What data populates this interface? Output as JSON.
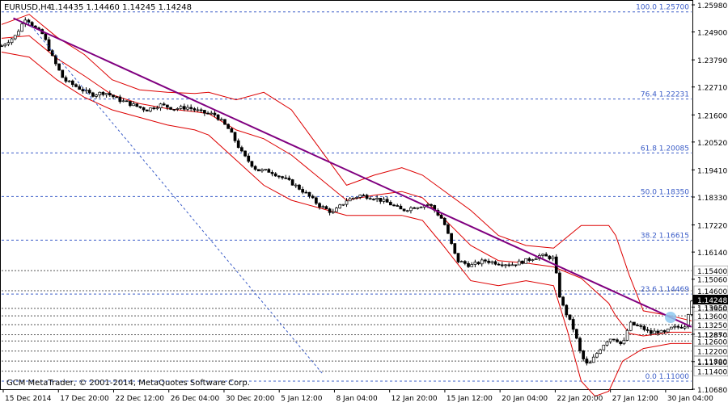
{
  "header": {
    "symbol_title": "EURUSD,H4",
    "ohlc": "1.14435 1.14460 1.14245 1.14248"
  },
  "footer": {
    "copyright": "GCM MetaTrader, © 2001-2014, MetaQuotes Software Corp."
  },
  "colors": {
    "background": "#ffffff",
    "candles": "#000000",
    "bollinger": "#dd0000",
    "trendline": "#800080",
    "fibo": "#3a5cc7",
    "price_label_bg": "#000000",
    "price_label_text": "#ffffff"
  },
  "chart_data": {
    "type": "candlestick",
    "title": "EURUSD,H4",
    "ylim": [
      1.1068,
      1.2598
    ],
    "y_ticks": [
      "1.25980",
      "1.24900",
      "1.23790",
      "1.22710",
      "1.21600",
      "1.20520",
      "1.19410",
      "1.18330",
      "1.17220",
      "1.16140",
      "1.15060",
      "1.13950",
      "1.12870",
      "1.11780",
      "1.10680"
    ],
    "x_ticks": [
      "15 Dec 2014",
      "17 Dec 20:00",
      "22 Dec 12:00",
      "26 Dec 04:00",
      "30 Dec 20:00",
      "5 Jan 12:00",
      "8 Jan 04:00",
      "12 Jan 20:00",
      "15 Jan 12:00",
      "20 Jan 04:00",
      "22 Jan 20:00",
      "27 Jan 12:00",
      "30 Jan 04:00"
    ],
    "fibonacci": [
      {
        "label": "100.0 1.25700",
        "price": 1.257
      },
      {
        "label": "76.4 1.22231",
        "price": 1.22231
      },
      {
        "label": "61.8 1.20085",
        "price": 1.20085
      },
      {
        "label": "50.0 1.18350",
        "price": 1.1835
      },
      {
        "label": "38.2 1.16615",
        "price": 1.16615
      },
      {
        "label": "23.6 1.14469",
        "price": 1.14469
      },
      {
        "label": "0.0 1.11000",
        "price": 1.11
      }
    ],
    "horizontal_levels": [
      {
        "label": "1.15400",
        "price": 1.154
      },
      {
        "label": "1.14600",
        "price": 1.146
      },
      {
        "label": "1.13900",
        "price": 1.139
      },
      {
        "label": "1.13600",
        "price": 1.136
      },
      {
        "label": "1.13250",
        "price": 1.1325
      },
      {
        "label": "1.12850",
        "price": 1.1285
      },
      {
        "label": "1.12600",
        "price": 1.126
      },
      {
        "label": "1.12200",
        "price": 1.122
      },
      {
        "label": "1.11800",
        "price": 1.118
      },
      {
        "label": "1.11400",
        "price": 1.114
      }
    ],
    "current_price": {
      "label": "1.14248",
      "price": 1.14248
    },
    "trendline": {
      "start": [
        0.017,
        1.2545
      ],
      "end": [
        1.0,
        1.1316
      ]
    },
    "trend_channel_dashed": {
      "start": [
        0.038,
        1.253
      ],
      "end": [
        0.465,
        1.113
      ]
    },
    "price_path": [
      [
        0.0,
        1.2435
      ],
      [
        0.02,
        1.2475
      ],
      [
        0.035,
        1.2548
      ],
      [
        0.05,
        1.25
      ],
      [
        0.06,
        1.248
      ],
      [
        0.075,
        1.238
      ],
      [
        0.09,
        1.23
      ],
      [
        0.11,
        1.227
      ],
      [
        0.13,
        1.224
      ],
      [
        0.15,
        1.225
      ],
      [
        0.17,
        1.222
      ],
      [
        0.19,
        1.22
      ],
      [
        0.21,
        1.218
      ],
      [
        0.23,
        1.22
      ],
      [
        0.25,
        1.2185
      ],
      [
        0.27,
        1.219
      ],
      [
        0.29,
        1.217
      ],
      [
        0.31,
        1.216
      ],
      [
        0.33,
        1.21
      ],
      [
        0.35,
        1.2
      ],
      [
        0.37,
        1.194
      ],
      [
        0.39,
        1.1935
      ],
      [
        0.4,
        1.192
      ],
      [
        0.42,
        1.189
      ],
      [
        0.44,
        1.185
      ],
      [
        0.46,
        1.18
      ],
      [
        0.48,
        1.177
      ],
      [
        0.5,
        1.182
      ],
      [
        0.52,
        1.184
      ],
      [
        0.54,
        1.183
      ],
      [
        0.56,
        1.181
      ],
      [
        0.58,
        1.178
      ],
      [
        0.6,
        1.1795
      ],
      [
        0.62,
        1.1805
      ],
      [
        0.64,
        1.174
      ],
      [
        0.66,
        1.158
      ],
      [
        0.68,
        1.156
      ],
      [
        0.7,
        1.158
      ],
      [
        0.72,
        1.157
      ],
      [
        0.74,
        1.1565
      ],
      [
        0.76,
        1.158
      ],
      [
        0.78,
        1.16
      ],
      [
        0.8,
        1.159
      ],
      [
        0.81,
        1.142
      ],
      [
        0.82,
        1.136
      ],
      [
        0.83,
        1.13
      ],
      [
        0.84,
        1.12
      ],
      [
        0.85,
        1.116
      ],
      [
        0.86,
        1.12
      ],
      [
        0.87,
        1.124
      ],
      [
        0.88,
        1.127
      ],
      [
        0.89,
        1.127
      ],
      [
        0.9,
        1.124
      ],
      [
        0.91,
        1.133
      ],
      [
        0.92,
        1.132
      ],
      [
        0.93,
        1.131
      ],
      [
        0.94,
        1.129
      ],
      [
        0.95,
        1.13
      ],
      [
        0.96,
        1.129
      ],
      [
        0.97,
        1.131
      ],
      [
        0.98,
        1.1315
      ],
      [
        0.99,
        1.132
      ],
      [
        1.0,
        1.1425
      ]
    ],
    "bollinger_upper": [
      [
        0.0,
        1.252
      ],
      [
        0.04,
        1.256
      ],
      [
        0.08,
        1.247
      ],
      [
        0.12,
        1.24
      ],
      [
        0.16,
        1.23
      ],
      [
        0.2,
        1.226
      ],
      [
        0.24,
        1.225
      ],
      [
        0.28,
        1.2245
      ],
      [
        0.3,
        1.225
      ],
      [
        0.34,
        1.222
      ],
      [
        0.38,
        1.225
      ],
      [
        0.42,
        1.218
      ],
      [
        0.46,
        1.203
      ],
      [
        0.5,
        1.188
      ],
      [
        0.54,
        1.192
      ],
      [
        0.58,
        1.195
      ],
      [
        0.61,
        1.192
      ],
      [
        0.64,
        1.186
      ],
      [
        0.68,
        1.178
      ],
      [
        0.72,
        1.168
      ],
      [
        0.76,
        1.164
      ],
      [
        0.8,
        1.163
      ],
      [
        0.84,
        1.172
      ],
      [
        0.88,
        1.172
      ],
      [
        0.89,
        1.168
      ],
      [
        0.91,
        1.152
      ],
      [
        0.93,
        1.138
      ],
      [
        0.97,
        1.136
      ],
      [
        1.0,
        1.134
      ]
    ],
    "bollinger_lower": [
      [
        0.0,
        1.241
      ],
      [
        0.04,
        1.239
      ],
      [
        0.08,
        1.23
      ],
      [
        0.12,
        1.223
      ],
      [
        0.16,
        1.218
      ],
      [
        0.2,
        1.215
      ],
      [
        0.24,
        1.212
      ],
      [
        0.28,
        1.21
      ],
      [
        0.3,
        1.208
      ],
      [
        0.34,
        1.198
      ],
      [
        0.38,
        1.188
      ],
      [
        0.42,
        1.182
      ],
      [
        0.46,
        1.179
      ],
      [
        0.5,
        1.176
      ],
      [
        0.54,
        1.176
      ],
      [
        0.58,
        1.176
      ],
      [
        0.61,
        1.174
      ],
      [
        0.64,
        1.164
      ],
      [
        0.68,
        1.15
      ],
      [
        0.72,
        1.148
      ],
      [
        0.76,
        1.15
      ],
      [
        0.8,
        1.148
      ],
      [
        0.82,
        1.13
      ],
      [
        0.84,
        1.11
      ],
      [
        0.86,
        1.104
      ],
      [
        0.88,
        1.106
      ],
      [
        0.9,
        1.118
      ],
      [
        0.93,
        1.123
      ],
      [
        0.97,
        1.125
      ],
      [
        1.0,
        1.125
      ]
    ]
  }
}
